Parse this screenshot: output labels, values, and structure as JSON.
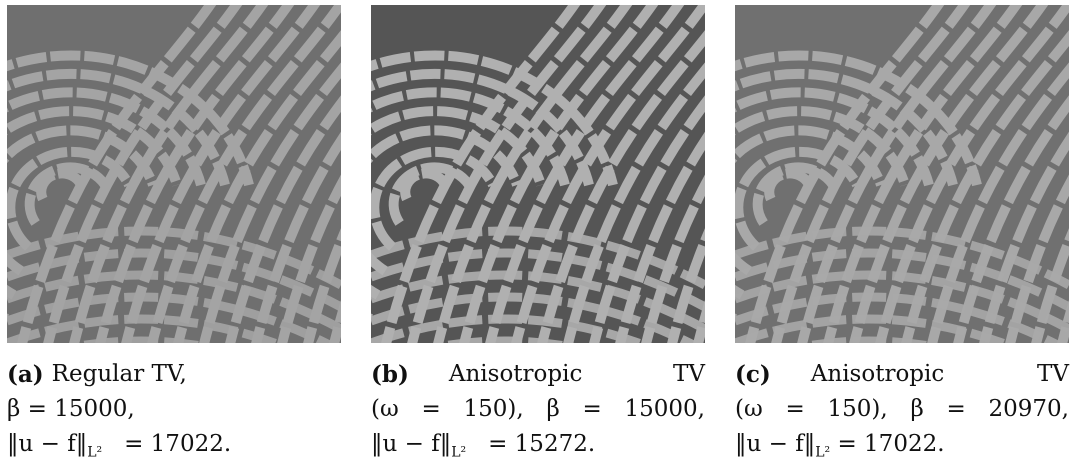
{
  "figure": {
    "panels": [
      {
        "label": "(a)",
        "lines": [
          "Regular TV,",
          "β = 15000,"
        ],
        "norm": "‖u − f‖",
        "norm_sub": "L²",
        "norm_value": "= 17022."
      },
      {
        "label": "(b)",
        "lines": [
          "Anisotropic TV",
          "(ω = 150), β = 15000,"
        ],
        "norm": "‖u − f‖",
        "norm_sub": "L²",
        "norm_value": "= 15272."
      },
      {
        "label": "(c)",
        "lines": [
          "Anisotropic TV",
          "(ω = 150), β = 20970,"
        ],
        "norm": "‖u − f‖",
        "norm_sub": "L²",
        "norm_value": "= 17022."
      }
    ]
  }
}
